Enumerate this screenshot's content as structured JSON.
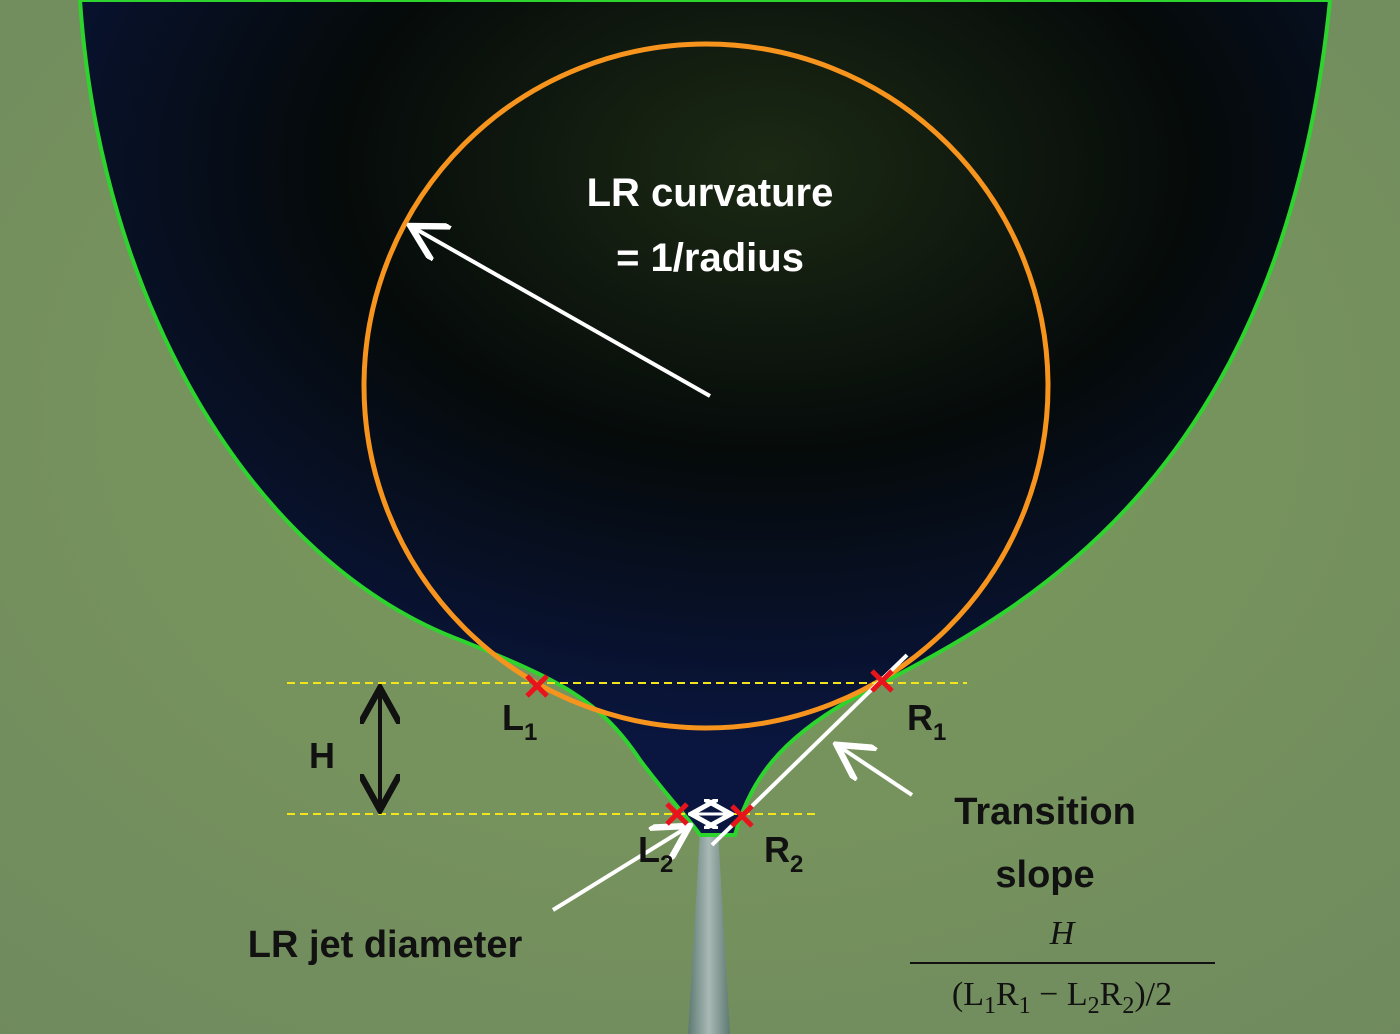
{
  "curvature": {
    "line1": "LR curvature",
    "line2": "= 1/radius"
  },
  "points": [
    {
      "letter": "L",
      "sub": "1"
    },
    {
      "letter": "R",
      "sub": "1"
    },
    {
      "letter": "L",
      "sub": "2"
    },
    {
      "letter": "R",
      "sub": "2"
    }
  ],
  "height": "H",
  "slope": {
    "line1": "Transition",
    "line2": "slope"
  },
  "jet": "LR jet diameter",
  "formula": {
    "numerator": "H",
    "denominator": [
      "(L",
      "1",
      "R",
      "1",
      " − L",
      "2",
      "R",
      "2",
      ")/2"
    ]
  }
}
